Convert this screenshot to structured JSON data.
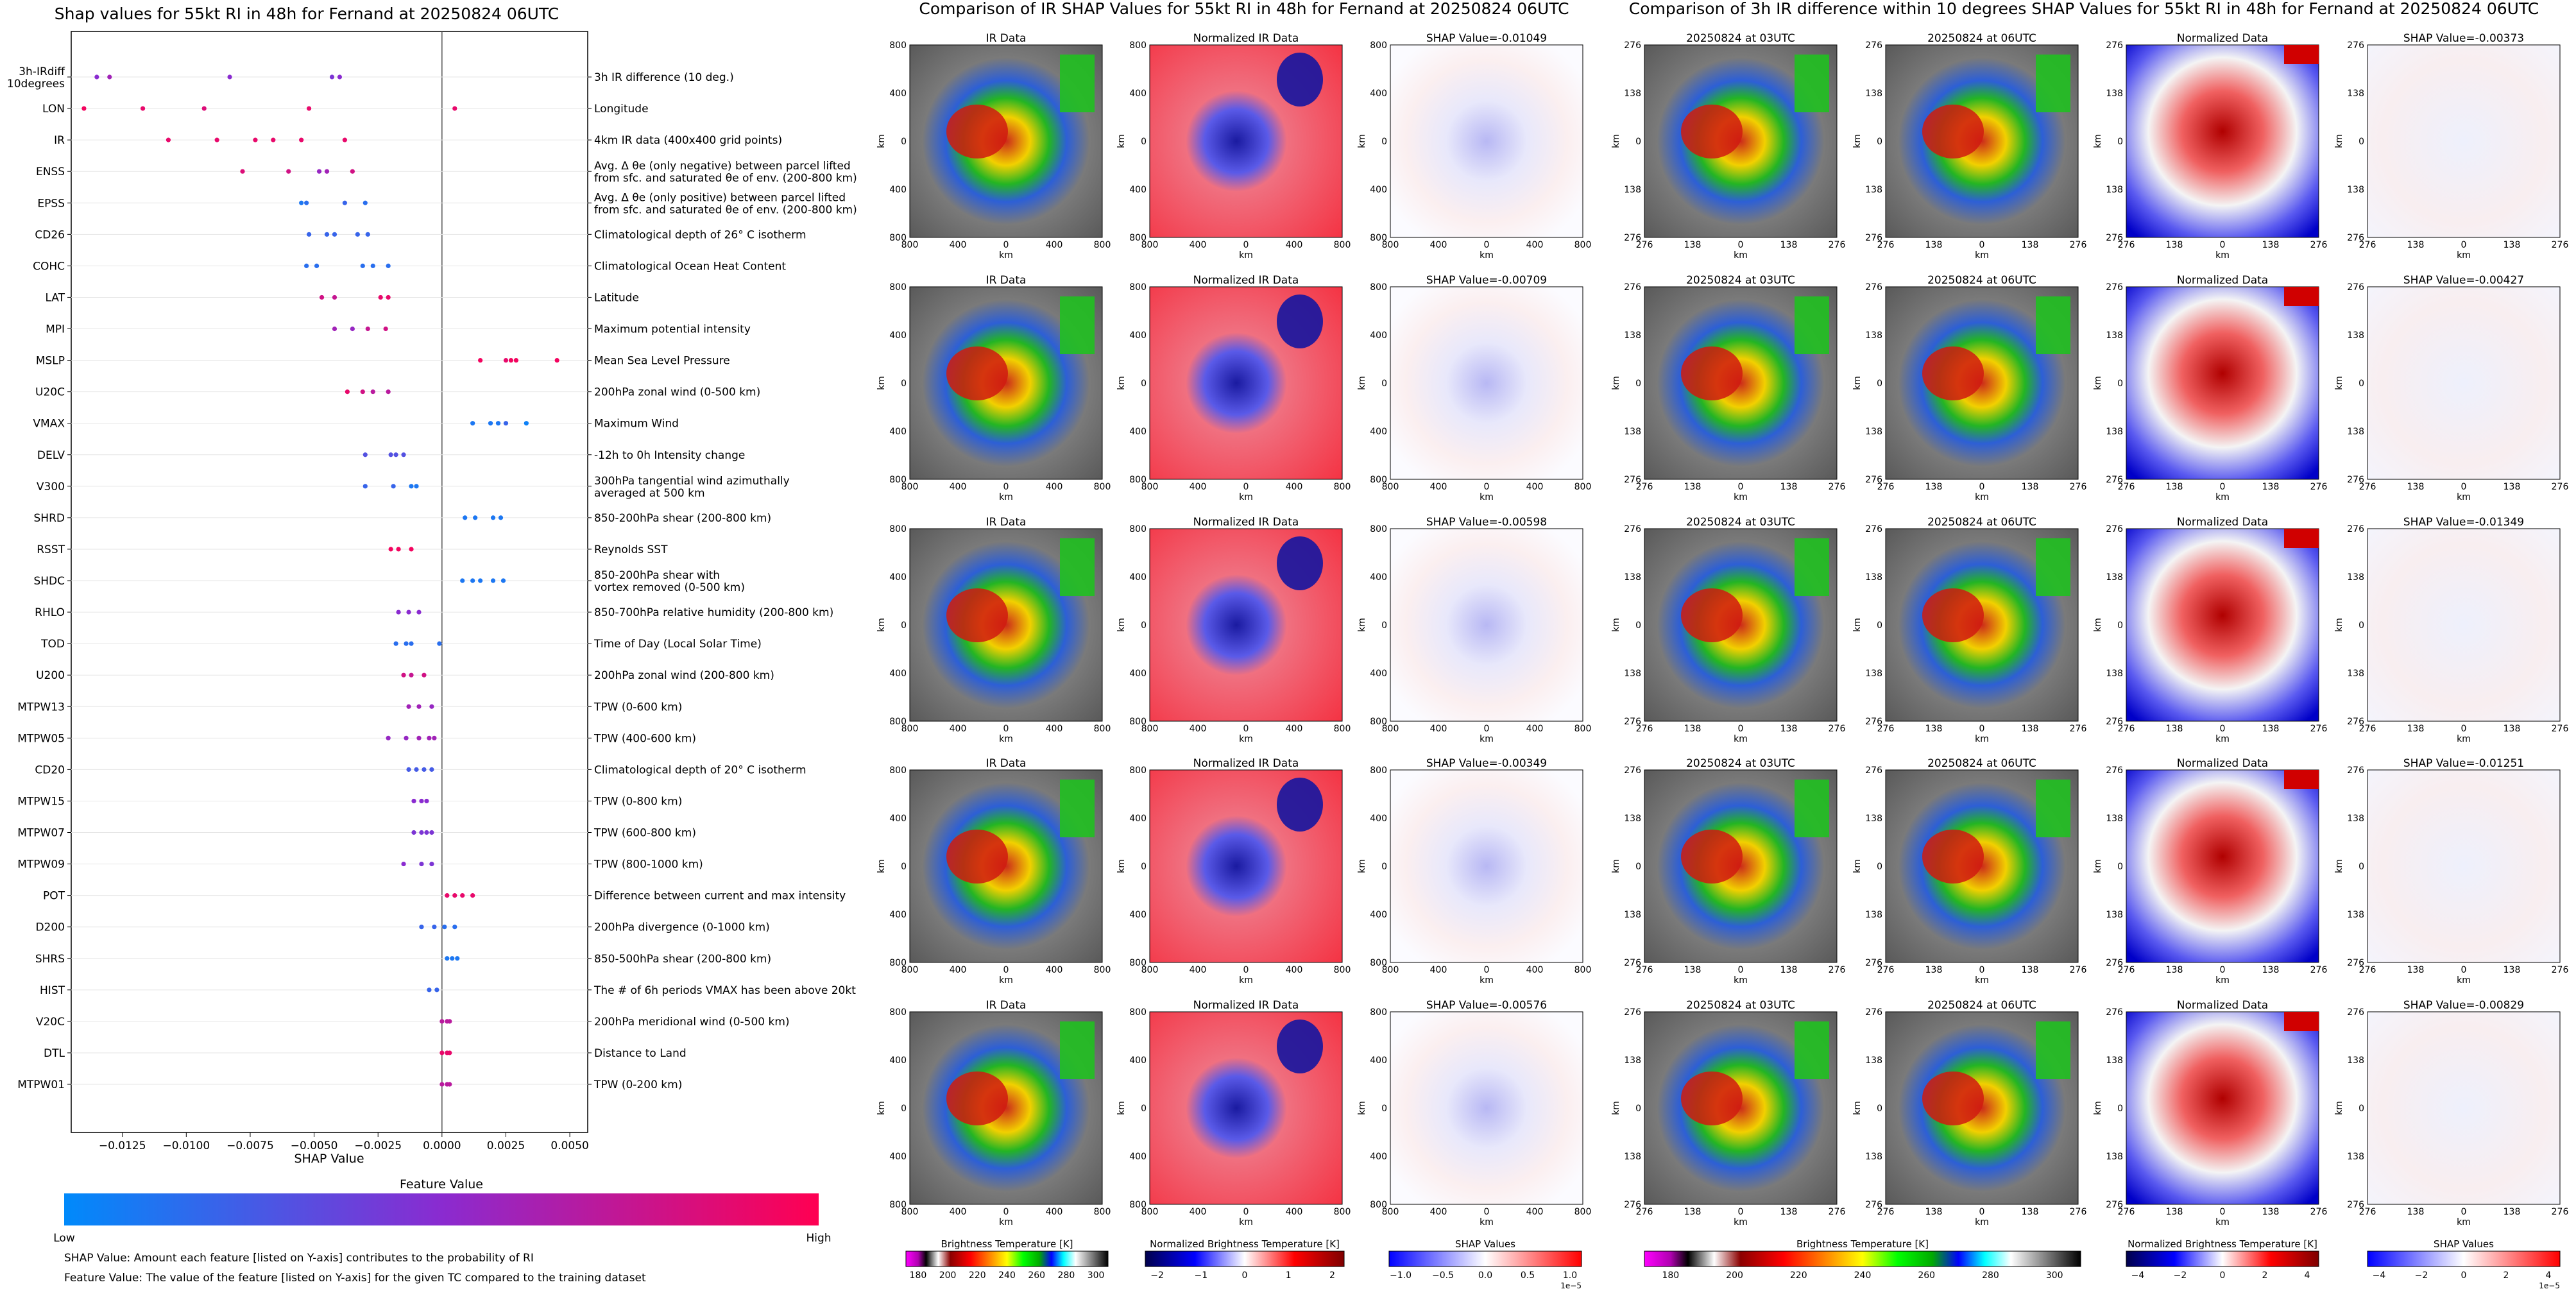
{
  "left_panel": {
    "title": "Shap values for 55kt RI in 48h for Fernand at 20250824 06UTC",
    "xlabel": "SHAP Value",
    "colorbar_title": "Feature Value",
    "colorbar_low": "Low",
    "colorbar_high": "High",
    "footnote_1": "SHAP Value: Amount each feature [listed on Y-axis] contributes to the probability of RI",
    "footnote_2": "Feature Value: The value of the feature [listed on Y-axis] for the given TC compared to the training dataset"
  },
  "mid_panel": {
    "title": "Comparison of IR SHAP Values for 55kt RI in 48h for Fernand at 20250824 06UTC",
    "col_titles": [
      "IR Data",
      "Normalized IR Data"
    ],
    "shap_titles": [
      "SHAP Value=-0.01049",
      "SHAP Value=-0.00709",
      "SHAP Value=-0.00598",
      "SHAP Value=-0.00349",
      "SHAP Value=-0.00576"
    ],
    "ticks": [
      "800",
      "400",
      "0",
      "400",
      "800"
    ],
    "axis_unit": "km",
    "colorbars": [
      {
        "label": "Brightness Temperature [K]",
        "ticks": [
          "180",
          "200",
          "220",
          "240",
          "260",
          "280",
          "300"
        ]
      },
      {
        "label": "Normalized Brightness Temperature [K]",
        "ticks": [
          "−2",
          "−1",
          "0",
          "1",
          "2"
        ]
      },
      {
        "label": "SHAP Values",
        "ticks": [
          "−1.0",
          "−0.5",
          "0.0",
          "0.5",
          "1.0"
        ],
        "exp": "1e−5"
      }
    ]
  },
  "right_panel": {
    "title": "Comparison of 3h IR difference within 10 degrees SHAP Values for 55kt RI in 48h for Fernand at 20250824 06UTC",
    "col_titles": [
      "20250824 at 03UTC",
      "20250824 at 06UTC",
      "Normalized Data"
    ],
    "shap_titles": [
      "SHAP Value=-0.00373",
      "SHAP Value=-0.00427",
      "SHAP Value=-0.01349",
      "SHAP Value=-0.01251",
      "SHAP Value=-0.00829"
    ],
    "ticks": [
      "276",
      "138",
      "0",
      "138",
      "276"
    ],
    "axis_unit": "km",
    "colorbars": [
      {
        "label": "Brightness Temperature [K]",
        "ticks": [
          "180",
          "200",
          "220",
          "240",
          "260",
          "280",
          "300"
        ]
      },
      {
        "label": "Normalized Brightness Temperature [K]",
        "ticks": [
          "−4",
          "−2",
          "0",
          "2",
          "4"
        ]
      },
      {
        "label": "SHAP Values",
        "ticks": [
          "−4",
          "−2",
          "0",
          "2",
          "4"
        ],
        "exp": "1e−5"
      }
    ]
  },
  "colors": {
    "low": "#008afb",
    "mid": "#8a2bd0",
    "high": "#ff0052"
  },
  "chart_data": {
    "type": "scatter",
    "title": "Shap values for 55kt RI in 48h for Fernand at 20250824 06UTC",
    "xlabel": "SHAP Value",
    "xlim": [
      -0.0145,
      0.0057
    ],
    "xticks": [
      -0.0125,
      -0.01,
      -0.0075,
      -0.005,
      -0.0025,
      0.0,
      0.0025,
      0.005
    ],
    "xtick_labels": [
      "−0.0125",
      "−0.0100",
      "−0.0075",
      "−0.0050",
      "−0.0025",
      "0.0000",
      "0.0025",
      "0.0050"
    ],
    "features": [
      {
        "code": "3h-IRdiff\n10degrees",
        "desc": "3h IR difference (10 deg.)",
        "points": [
          [
            -0.0135,
            0.5
          ],
          [
            -0.013,
            0.6
          ],
          [
            -0.0083,
            0.5
          ],
          [
            -0.0043,
            0.45
          ],
          [
            -0.004,
            0.5
          ]
        ]
      },
      {
        "code": "LON",
        "desc": "Longitude",
        "points": [
          [
            -0.014,
            0.95
          ],
          [
            -0.0117,
            0.9
          ],
          [
            -0.0093,
            0.85
          ],
          [
            -0.0052,
            0.9
          ],
          [
            0.0005,
            0.9
          ]
        ]
      },
      {
        "code": "IR",
        "desc": "4km IR data (400x400 grid points)",
        "points": [
          [
            -0.0107,
            0.9
          ],
          [
            -0.0088,
            0.9
          ],
          [
            -0.0073,
            0.9
          ],
          [
            -0.0066,
            0.9
          ],
          [
            -0.0055,
            0.9
          ],
          [
            -0.0038,
            0.9
          ]
        ]
      },
      {
        "code": "ENSS",
        "desc": "Avg. Δ θe (only negative) between parcel lifted\nfrom sfc. and saturated θe of env. (200-800 km)",
        "points": [
          [
            -0.0078,
            0.85
          ],
          [
            -0.006,
            0.8
          ],
          [
            -0.0048,
            0.55
          ],
          [
            -0.0045,
            0.6
          ],
          [
            -0.0035,
            0.8
          ]
        ]
      },
      {
        "code": "EPSS",
        "desc": "Avg. Δ θe (only positive) between parcel lifted\nfrom sfc. and saturated θe of env. (200-800 km)",
        "points": [
          [
            -0.0055,
            0.1
          ],
          [
            -0.0053,
            0.15
          ],
          [
            -0.0038,
            0.2
          ],
          [
            -0.003,
            0.15
          ]
        ]
      },
      {
        "code": "CD26",
        "desc": "Climatological depth of 26° C isotherm",
        "points": [
          [
            -0.0052,
            0.2
          ],
          [
            -0.0045,
            0.2
          ],
          [
            -0.0042,
            0.2
          ],
          [
            -0.0033,
            0.2
          ],
          [
            -0.0029,
            0.2
          ]
        ]
      },
      {
        "code": "COHC",
        "desc": "Climatological Ocean Heat Content",
        "points": [
          [
            -0.0053,
            0.15
          ],
          [
            -0.0049,
            0.15
          ],
          [
            -0.0031,
            0.15
          ],
          [
            -0.0027,
            0.15
          ],
          [
            -0.0021,
            0.15
          ]
        ]
      },
      {
        "code": "LAT",
        "desc": "Latitude",
        "points": [
          [
            -0.0047,
            0.8
          ],
          [
            -0.0042,
            0.75
          ],
          [
            -0.0024,
            0.9
          ],
          [
            -0.0021,
            0.9
          ]
        ]
      },
      {
        "code": "MPI",
        "desc": "Maximum potential intensity",
        "points": [
          [
            -0.0042,
            0.6
          ],
          [
            -0.0035,
            0.55
          ],
          [
            -0.0029,
            0.75
          ],
          [
            -0.0022,
            0.8
          ]
        ]
      },
      {
        "code": "MSLP",
        "desc": "Mean Sea Level Pressure",
        "points": [
          [
            0.0015,
            0.95
          ],
          [
            0.0025,
            0.9
          ],
          [
            0.0027,
            0.95
          ],
          [
            0.0029,
            0.95
          ],
          [
            0.0045,
            0.95
          ]
        ]
      },
      {
        "code": "U20C",
        "desc": "200hPa zonal wind (0-500 km)",
        "points": [
          [
            -0.0037,
            0.9
          ],
          [
            -0.0031,
            0.8
          ],
          [
            -0.0027,
            0.7
          ],
          [
            -0.0021,
            0.7
          ]
        ]
      },
      {
        "code": "VMAX",
        "desc": "Maximum Wind",
        "points": [
          [
            0.0012,
            0.1
          ],
          [
            0.0019,
            0.1
          ],
          [
            0.0022,
            0.1
          ],
          [
            0.0025,
            0.2
          ],
          [
            0.0033,
            0.05
          ]
        ]
      },
      {
        "code": "DELV",
        "desc": "-12h to 0h Intensity change",
        "points": [
          [
            -0.003,
            0.3
          ],
          [
            -0.002,
            0.3
          ],
          [
            -0.0018,
            0.3
          ],
          [
            -0.0015,
            0.3
          ]
        ]
      },
      {
        "code": "V300",
        "desc": "300hPa tangential wind azimuthally\naveraged at 500 km",
        "points": [
          [
            -0.003,
            0.2
          ],
          [
            -0.0019,
            0.2
          ],
          [
            -0.0012,
            0.1
          ],
          [
            -0.001,
            0.1
          ]
        ]
      },
      {
        "code": "SHRD",
        "desc": "850-200hPa shear (200-800 km)",
        "points": [
          [
            0.0009,
            0.1
          ],
          [
            0.0013,
            0.1
          ],
          [
            0.002,
            0.1
          ],
          [
            0.0023,
            0.1
          ]
        ]
      },
      {
        "code": "RSST",
        "desc": "Reynolds SST",
        "points": [
          [
            -0.002,
            0.95
          ],
          [
            -0.0017,
            0.95
          ],
          [
            -0.0012,
            0.95
          ]
        ]
      },
      {
        "code": "SHDC",
        "desc": "850-200hPa shear with\nvortex removed (0-500 km)",
        "points": [
          [
            0.0008,
            0.1
          ],
          [
            0.0012,
            0.1
          ],
          [
            0.0015,
            0.1
          ],
          [
            0.002,
            0.1
          ],
          [
            0.0024,
            0.1
          ]
        ]
      },
      {
        "code": "RHLO",
        "desc": "850-700hPa relative humidity (200-800 km)",
        "points": [
          [
            -0.0017,
            0.5
          ],
          [
            -0.0013,
            0.5
          ],
          [
            -0.0009,
            0.5
          ]
        ]
      },
      {
        "code": "TOD",
        "desc": "Time of Day (Local Solar Time)",
        "points": [
          [
            -0.0018,
            0.15
          ],
          [
            -0.0014,
            0.15
          ],
          [
            -0.0012,
            0.15
          ],
          [
            -0.0001,
            0.15
          ]
        ]
      },
      {
        "code": "U200",
        "desc": "200hPa zonal wind (200-800 km)",
        "points": [
          [
            -0.0015,
            0.8
          ],
          [
            -0.0012,
            0.75
          ],
          [
            -0.0007,
            0.8
          ]
        ]
      },
      {
        "code": "MTPW13",
        "desc": "TPW (0-600 km)",
        "points": [
          [
            -0.0013,
            0.6
          ],
          [
            -0.0009,
            0.6
          ],
          [
            -0.0004,
            0.55
          ]
        ]
      },
      {
        "code": "MTPW05",
        "desc": "TPW (400-600 km)",
        "points": [
          [
            -0.0021,
            0.55
          ],
          [
            -0.0014,
            0.55
          ],
          [
            -0.0009,
            0.6
          ],
          [
            -0.0005,
            0.6
          ],
          [
            -0.0003,
            0.6
          ]
        ]
      },
      {
        "code": "CD20",
        "desc": "Climatological depth of 20° C isotherm",
        "points": [
          [
            -0.0013,
            0.25
          ],
          [
            -0.001,
            0.25
          ],
          [
            -0.0007,
            0.25
          ],
          [
            -0.0004,
            0.25
          ]
        ]
      },
      {
        "code": "MTPW15",
        "desc": "TPW (0-800 km)",
        "points": [
          [
            -0.0011,
            0.5
          ],
          [
            -0.0008,
            0.5
          ],
          [
            -0.0006,
            0.5
          ]
        ]
      },
      {
        "code": "MTPW07",
        "desc": "TPW (600-800 km)",
        "points": [
          [
            -0.0011,
            0.45
          ],
          [
            -0.0008,
            0.45
          ],
          [
            -0.0006,
            0.45
          ],
          [
            -0.0004,
            0.45
          ]
        ]
      },
      {
        "code": "MTPW09",
        "desc": "TPW (800-1000 km)",
        "points": [
          [
            -0.0015,
            0.5
          ],
          [
            -0.0008,
            0.45
          ],
          [
            -0.0004,
            0.45
          ]
        ]
      },
      {
        "code": "POT",
        "desc": "Difference between current and max intensity",
        "points": [
          [
            0.0002,
            0.9
          ],
          [
            0.0005,
            0.9
          ],
          [
            0.0008,
            0.9
          ],
          [
            0.0012,
            0.9
          ]
        ]
      },
      {
        "code": "D200",
        "desc": "200hPa divergence (0-1000 km)",
        "points": [
          [
            -0.0008,
            0.2
          ],
          [
            -0.0003,
            0.2
          ],
          [
            0.0001,
            0.15
          ],
          [
            0.0005,
            0.15
          ]
        ]
      },
      {
        "code": "SHRS",
        "desc": "850-500hPa shear (200-800 km)",
        "points": [
          [
            0.0002,
            0.1
          ],
          [
            0.0004,
            0.1
          ],
          [
            0.0006,
            0.1
          ]
        ]
      },
      {
        "code": "HIST",
        "desc": "The # of 6h periods VMAX has been above 20kt",
        "points": [
          [
            -0.0005,
            0.2
          ],
          [
            -0.0002,
            0.2
          ]
        ]
      },
      {
        "code": "V20C",
        "desc": "200hPa meridional wind (0-500 km)",
        "points": [
          [
            0.0,
            0.7
          ],
          [
            0.0002,
            0.7
          ],
          [
            0.0003,
            0.7
          ]
        ]
      },
      {
        "code": "DTL",
        "desc": "Distance to Land",
        "points": [
          [
            0.0,
            0.9
          ],
          [
            0.0002,
            0.9
          ],
          [
            0.0003,
            0.9
          ]
        ]
      },
      {
        "code": "MTPW01",
        "desc": "TPW (0-200 km)",
        "points": [
          [
            0.0,
            0.7
          ],
          [
            0.0002,
            0.7
          ],
          [
            0.0003,
            0.7
          ]
        ]
      }
    ]
  }
}
